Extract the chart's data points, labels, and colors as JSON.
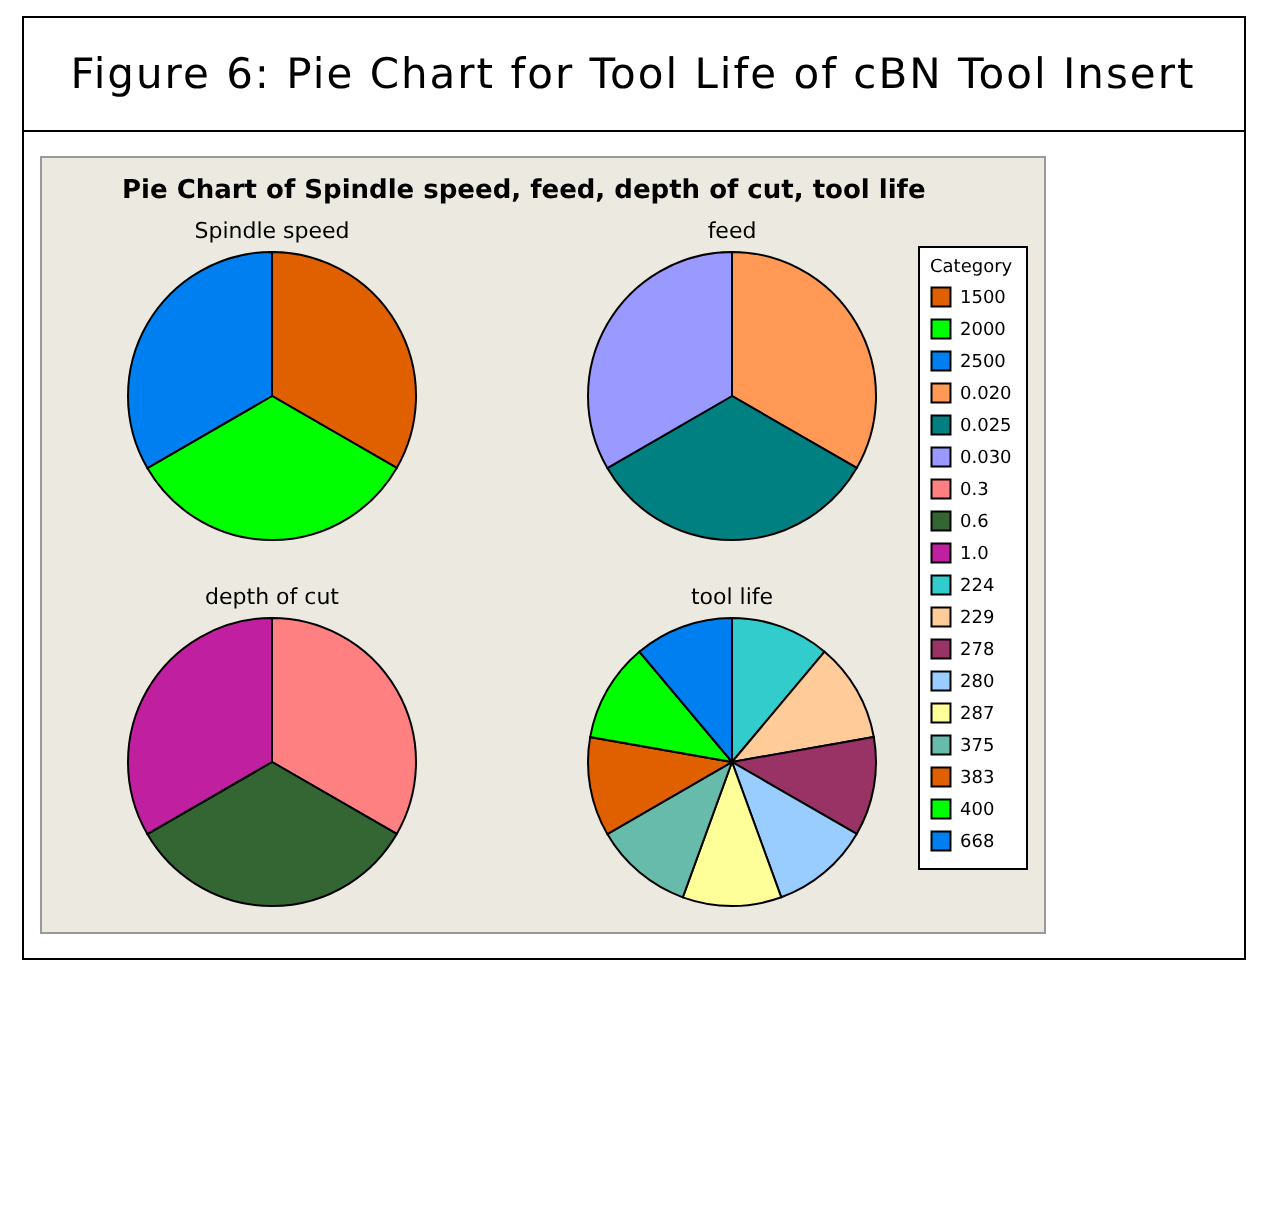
{
  "chart_data": [
    {
      "type": "other",
      "title": "Figure 6: Pie Chart for Tool Life of cBN Tool Insert",
      "subtitle": "Pie Chart of Spindle speed, feed, depth of cut, tool life"
    },
    {
      "type": "pie",
      "title": "Spindle speed",
      "categories": [
        "1500",
        "2000",
        "2500"
      ],
      "values": [
        33.33,
        33.33,
        33.34
      ],
      "colors": [
        "#e06000",
        "#00ff00",
        "#0080f0"
      ],
      "legend": "right",
      "legend_title": "Category"
    },
    {
      "type": "pie",
      "title": "feed",
      "categories": [
        "0.020",
        "0.025",
        "0.030"
      ],
      "values": [
        33.33,
        33.33,
        33.34
      ],
      "colors": [
        "#ff9955",
        "#008080",
        "#9999ff"
      ],
      "legend": "right"
    },
    {
      "type": "pie",
      "title": "depth of cut",
      "categories": [
        "0.3",
        "0.6",
        "1.0"
      ],
      "values": [
        33.33,
        33.33,
        33.34
      ],
      "colors": [
        "#ff8080",
        "#336633",
        "#c020a0"
      ],
      "legend": "right"
    },
    {
      "type": "pie",
      "title": "tool life",
      "categories": [
        "224",
        "229",
        "278",
        "280",
        "287",
        "375",
        "383",
        "400",
        "668"
      ],
      "values": [
        11.11,
        11.11,
        11.11,
        11.11,
        11.11,
        11.11,
        11.11,
        11.11,
        11.12
      ],
      "colors": [
        "#33cccc",
        "#ffcc99",
        "#993366",
        "#99ccff",
        "#ffff99",
        "#66bbaa",
        "#e06000",
        "#00ff00",
        "#0080f0"
      ],
      "legend": "right"
    }
  ]
}
